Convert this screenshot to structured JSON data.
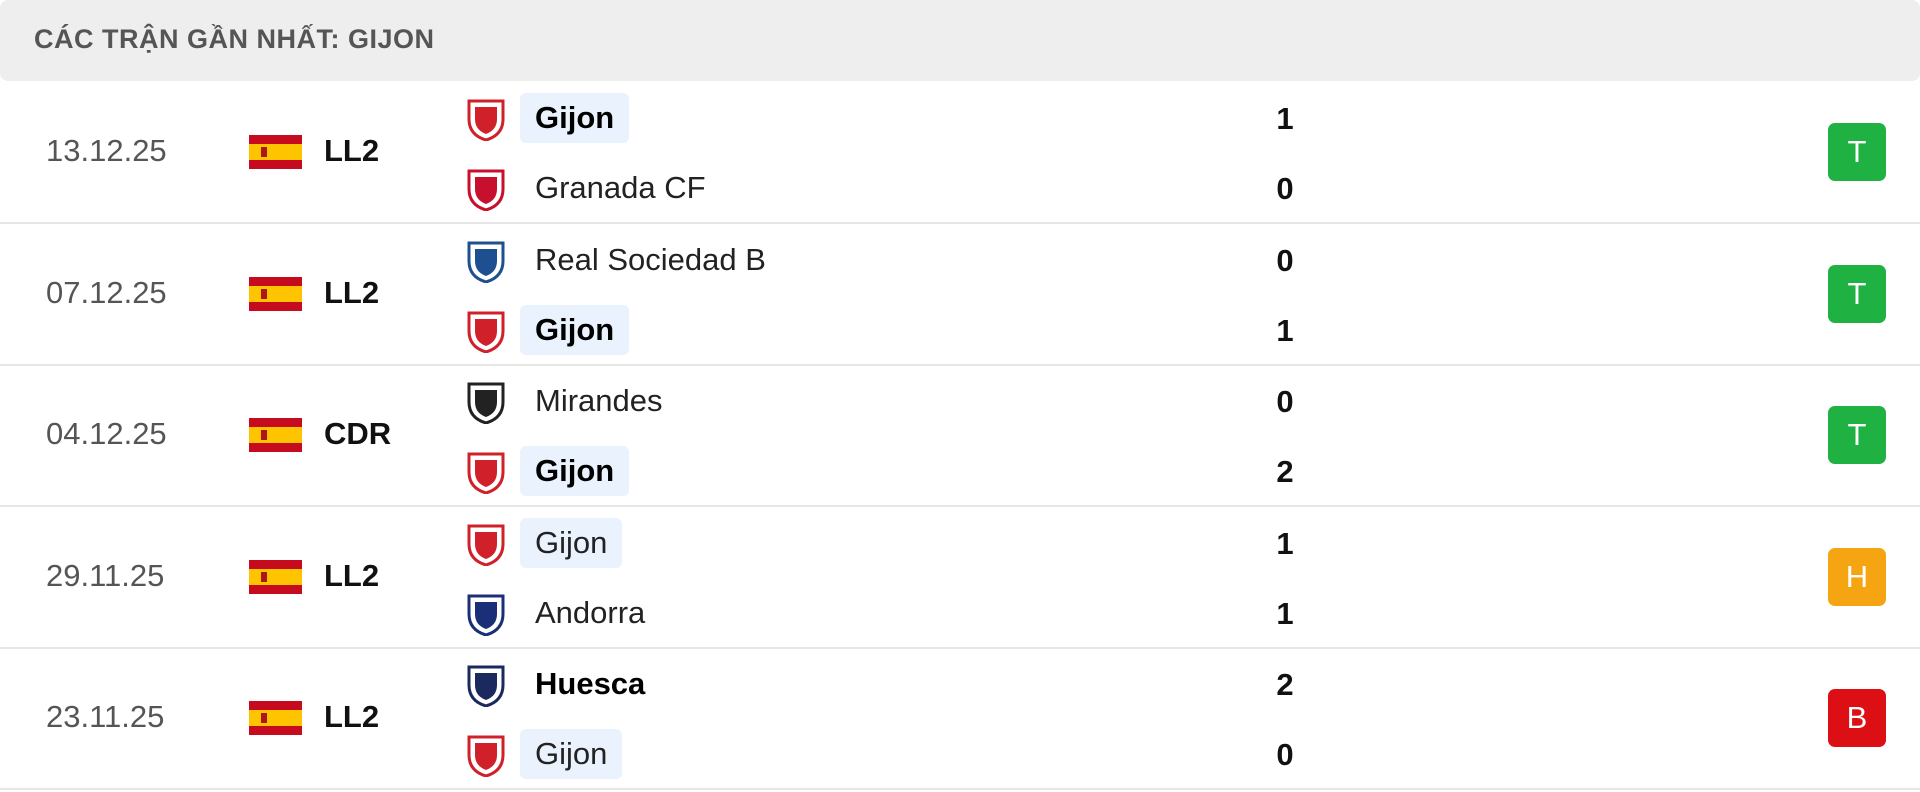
{
  "header": {
    "title": "CÁC TRẬN GẦN NHẤT: GIJON"
  },
  "matches": [
    {
      "date": "13.12.25",
      "league": "LL2",
      "home": {
        "name": "Gijon",
        "score": 1,
        "highlight": true,
        "logo": "#d0202a"
      },
      "away": {
        "name": "Granada CF",
        "score": 0,
        "highlight": false,
        "logo": "#c8102e"
      },
      "result": "T",
      "result_color": "#1fb141"
    },
    {
      "date": "07.12.25",
      "league": "LL2",
      "home": {
        "name": "Real Sociedad B",
        "score": 0,
        "highlight": false,
        "logo": "#1d4f91"
      },
      "away": {
        "name": "Gijon",
        "score": 1,
        "highlight": true,
        "logo": "#d0202a"
      },
      "result": "T",
      "result_color": "#1fb141"
    },
    {
      "date": "04.12.25",
      "league": "CDR",
      "home": {
        "name": "Mirandes",
        "score": 0,
        "highlight": false,
        "logo": "#222222"
      },
      "away": {
        "name": "Gijon",
        "score": 2,
        "highlight": true,
        "logo": "#d0202a"
      },
      "result": "T",
      "result_color": "#1fb141"
    },
    {
      "date": "29.11.25",
      "league": "LL2",
      "home": {
        "name": "Gijon",
        "score": 1,
        "highlight": true,
        "logo": "#d0202a"
      },
      "away": {
        "name": "Andorra",
        "score": 1,
        "highlight": false,
        "logo": "#1a2f78"
      },
      "result": "H",
      "result_color": "#f5a511"
    },
    {
      "date": "23.11.25",
      "league": "LL2",
      "home": {
        "name": "Huesca",
        "score": 2,
        "highlight": false,
        "logo": "#1b2a5e"
      },
      "away": {
        "name": "Gijon",
        "score": 0,
        "highlight": true,
        "logo": "#d0202a"
      },
      "result": "B",
      "result_color": "#dc0f14"
    }
  ]
}
